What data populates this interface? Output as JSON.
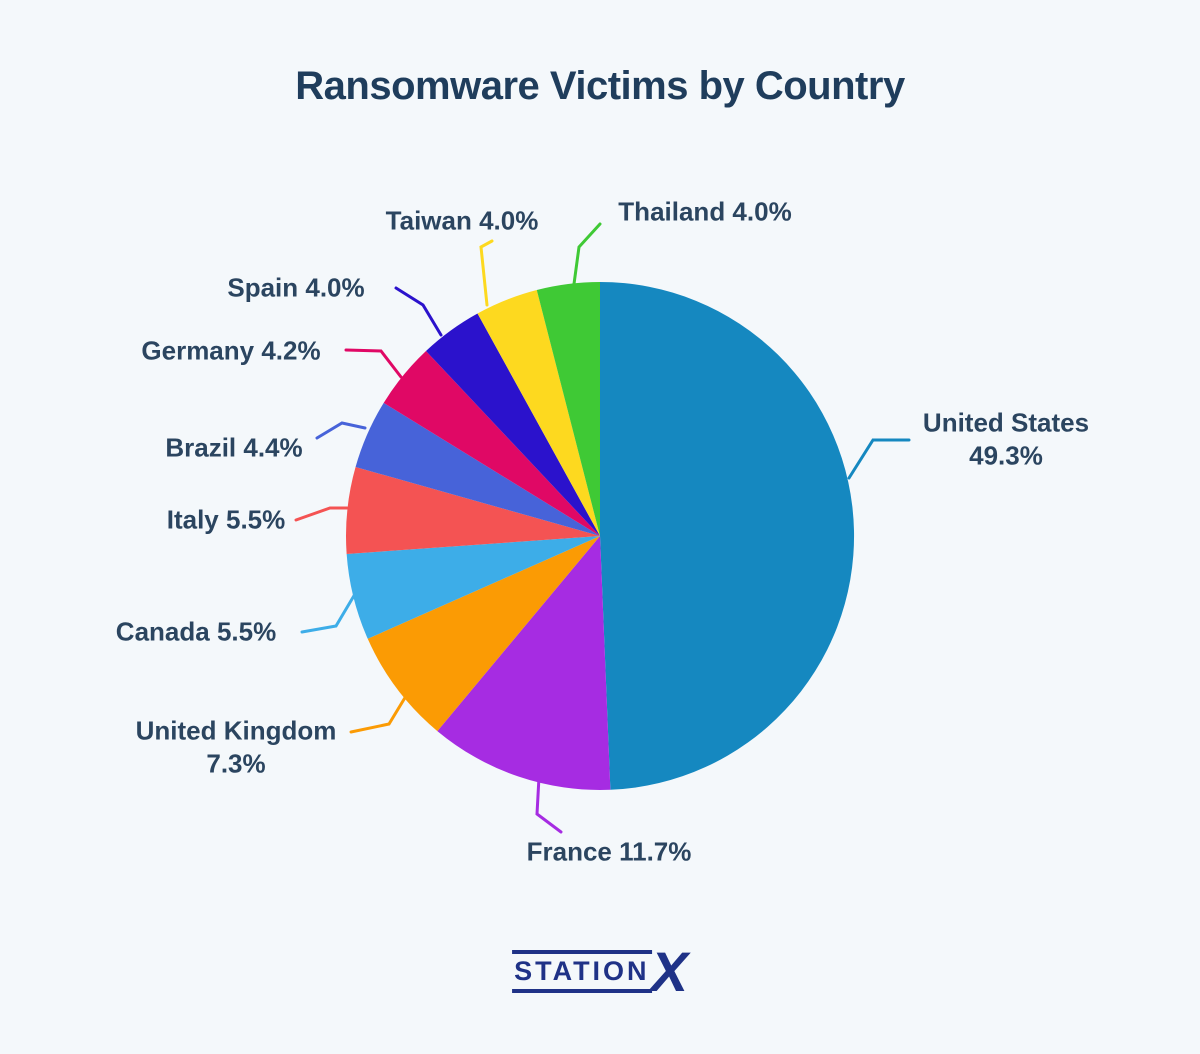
{
  "page": {
    "background_color": "#f4f8fb",
    "text_color": "#2b4560",
    "title_color": "#1f3d5c"
  },
  "chart_data": {
    "type": "pie",
    "title": "Ransomware Victims by Country",
    "unit": "percent",
    "start_angle_deg": 0,
    "direction": "clockwise",
    "legend": "none",
    "labels": "outside-with-leader-lines",
    "series": [
      {
        "label": "United States",
        "value": 49.3,
        "display": "49.3%",
        "color": "#1588c0"
      },
      {
        "label": "France",
        "value": 11.7,
        "display": "11.7%",
        "color": "#a62ce2"
      },
      {
        "label": "United Kingdom",
        "value": 7.3,
        "display": "7.3%",
        "color": "#fb9b04"
      },
      {
        "label": "Canada",
        "value": 5.5,
        "display": "5.5%",
        "color": "#3dade8"
      },
      {
        "label": "Italy",
        "value": 5.5,
        "display": "5.5%",
        "color": "#f45353"
      },
      {
        "label": "Brazil",
        "value": 4.4,
        "display": "4.4%",
        "color": "#4763d9"
      },
      {
        "label": "Germany",
        "value": 4.2,
        "display": "4.2%",
        "color": "#e00865"
      },
      {
        "label": "Spain",
        "value": 4.0,
        "display": "4.0%",
        "color": "#2b12cc"
      },
      {
        "label": "Taiwan",
        "value": 4.0,
        "display": "4.0%",
        "color": "#fdd91f"
      },
      {
        "label": "Thailand",
        "value": 4.0,
        "display": "4.0%",
        "color": "#3fc935"
      }
    ]
  },
  "logo": {
    "station_text": "STATION",
    "x_text": "X",
    "color": "#1f3287"
  }
}
